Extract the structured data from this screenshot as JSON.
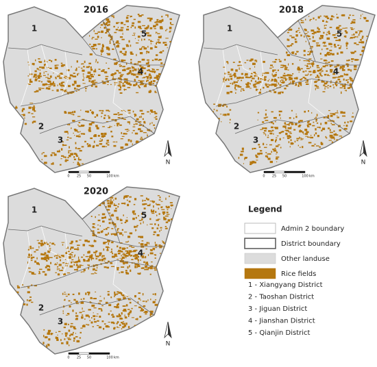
{
  "maps": [
    {
      "year": "2016",
      "districts": [
        "1",
        "2",
        "3",
        "4",
        "5"
      ],
      "north": "N",
      "scale": {
        "ticks": [
          0,
          25,
          50,
          100
        ],
        "unit": "km"
      }
    },
    {
      "year": "2018",
      "districts": [
        "1",
        "2",
        "3",
        "4",
        "5"
      ],
      "north": "N",
      "scale": {
        "ticks": [
          0,
          25,
          50,
          100
        ],
        "unit": "km"
      }
    },
    {
      "year": "2020",
      "districts": [
        "1",
        "2",
        "3",
        "4",
        "5"
      ],
      "north": "N",
      "scale": {
        "ticks": [
          0,
          25,
          50,
          100
        ],
        "unit": "km"
      }
    }
  ],
  "legend": {
    "title": "Legend",
    "items": [
      "Admin 2 boundary",
      "District boundary",
      "Other landuse",
      "Rice fields"
    ],
    "districts": [
      "1 - Xiangyang District",
      "2 - Taoshan District",
      "3 - Jiguan District",
      "4 - Jianshan District",
      "5 - Qianjin District"
    ]
  }
}
